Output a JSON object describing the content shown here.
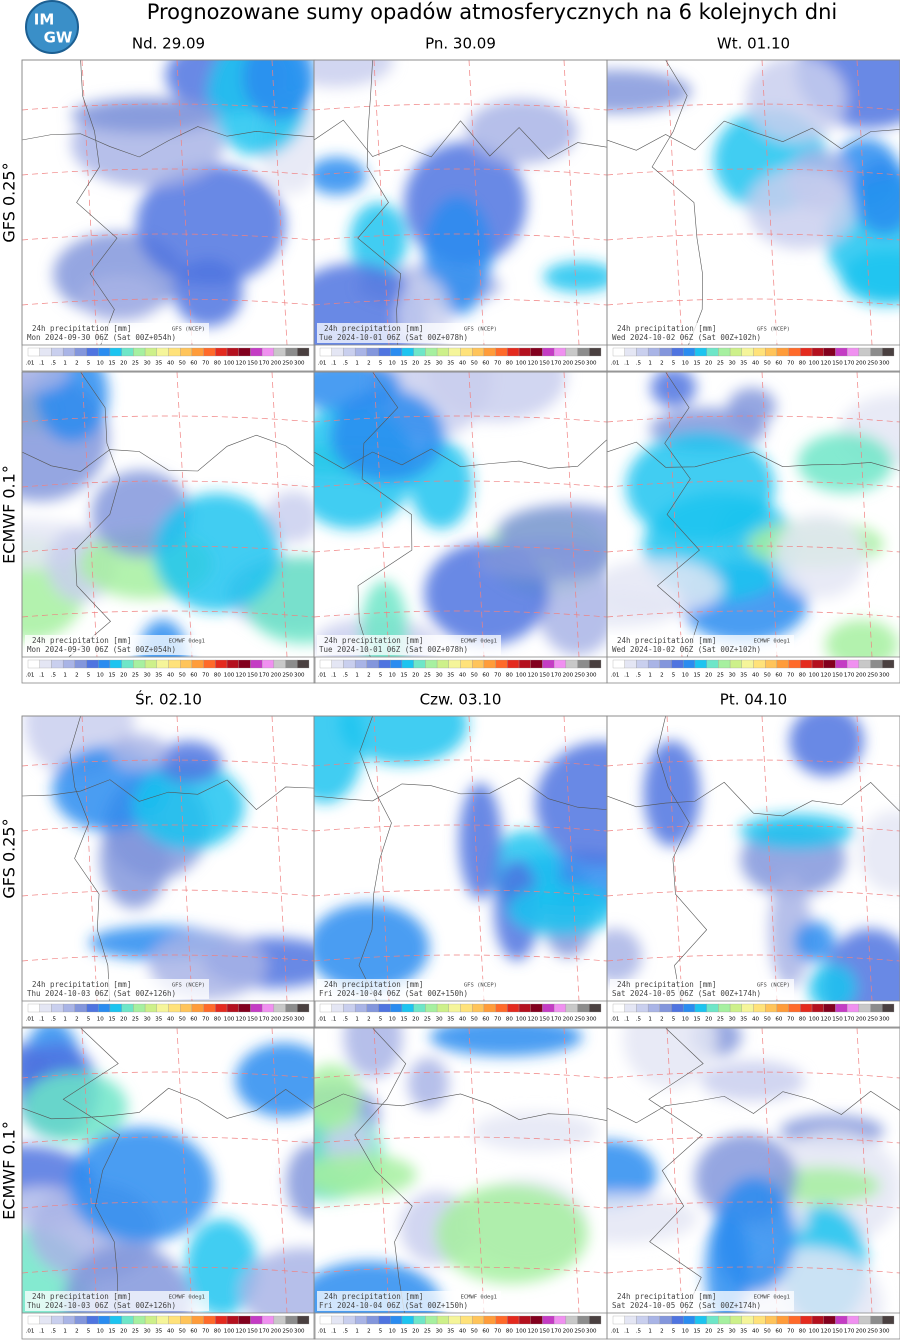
{
  "header": {
    "title": "Prognozowane sumy opadów atmosferycznych na 6 kolejnych dni",
    "logo": [
      "IM",
      "GW"
    ]
  },
  "colorbar": {
    "labels": [
      ".01",
      ".1",
      ".5",
      "1",
      "2",
      "5",
      "10",
      "15",
      "20",
      "25",
      "30",
      "35",
      "40",
      "50",
      "60",
      "70",
      "80",
      "100",
      "120",
      "150",
      "170",
      "200",
      "250",
      "300"
    ],
    "colors": [
      "#ffffff",
      "#e4e6f4",
      "#c9cfee",
      "#a9b4e6",
      "#8396dc",
      "#4f74e0",
      "#2a8cf0",
      "#1cc4f0",
      "#6ee6c8",
      "#a6f0a0",
      "#cdf08a",
      "#f5f59a",
      "#ffe27a",
      "#ffc45a",
      "#ff9c3a",
      "#ff6a2a",
      "#e42a1e",
      "#b4101e",
      "#82001e",
      "#c43cc4",
      "#f090f0",
      "#c8c8c8",
      "#8c8c8c",
      "#4a4040"
    ]
  },
  "blocks": [
    {
      "days": [
        "Nd. 29.09",
        "Pn. 30.09",
        "Wt. 01.10"
      ],
      "models": [
        {
          "label": "GFS 0.25°",
          "panels": [
            {
              "caption": "24h precipitation  [mm]",
              "source": "GFS (NCEP)",
              "valid": "Mon 2024-09-30 06Z (Sat 00Z+054h)"
            },
            {
              "caption": "24h precipitation  [mm]",
              "source": "GFS (NCEP)",
              "valid": "Tue 2024-10-01 06Z (Sat 00Z+078h)"
            },
            {
              "caption": "24h precipitation  [mm]",
              "source": "GFS (NCEP)",
              "valid": "Wed 2024-10-02 06Z (Sat 00Z+102h)"
            }
          ]
        },
        {
          "label": "ECMWF 0.1°",
          "panels": [
            {
              "caption": "24h precipitation  [mm]",
              "source": "ECMWF 0deg1",
              "valid": "Mon 2024-09-30 06Z (Sat 00Z+054h)"
            },
            {
              "caption": "24h precipitation  [mm]",
              "source": "ECMWF 0deg1",
              "valid": "Tue 2024-10-01 06Z (Sat 00Z+078h)"
            },
            {
              "caption": "24h precipitation  [mm]",
              "source": "ECMWF 0deg1",
              "valid": "Wed 2024-10-02 06Z (Sat 00Z+102h)"
            }
          ]
        }
      ]
    },
    {
      "days": [
        "Śr. 02.10",
        "Czw. 03.10",
        "Pt. 04.10"
      ],
      "models": [
        {
          "label": "GFS 0.25°",
          "panels": [
            {
              "caption": "24h precipitation  [mm]",
              "source": "GFS (NCEP)",
              "valid": "Thu 2024-10-03 06Z (Sat 00Z+126h)"
            },
            {
              "caption": "24h precipitation  [mm]",
              "source": "GFS (NCEP)",
              "valid": "Fri 2024-10-04 06Z (Sat 00Z+150h)"
            },
            {
              "caption": "24h precipitation  [mm]",
              "source": "GFS (NCEP)",
              "valid": "Sat 2024-10-05 06Z (Sat 00Z+174h)"
            }
          ]
        },
        {
          "label": "ECMWF 0.1°",
          "panels": [
            {
              "caption": "24h precipitation  [mm]",
              "source": "ECMWF 0deg1",
              "valid": "Thu 2024-10-03 06Z (Sat 00Z+126h)"
            },
            {
              "caption": "24h precipitation  [mm]",
              "source": "ECMWF 0deg1",
              "valid": "Fri 2024-10-04 06Z (Sat 00Z+150h)"
            },
            {
              "caption": "24h precipitation  [mm]",
              "source": "ECMWF 0deg1",
              "valid": "Sat 2024-10-05 06Z (Sat 00Z+174h)"
            }
          ]
        }
      ]
    }
  ]
}
